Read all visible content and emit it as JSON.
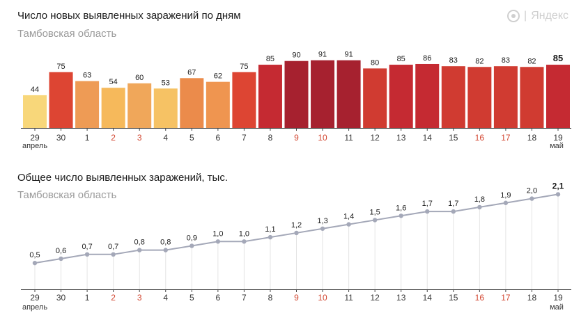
{
  "brand": {
    "logo_icon": "yandex-logo-icon",
    "separator": "|",
    "name": "Яндекс"
  },
  "chart_data": [
    {
      "type": "bar",
      "title": "Число новых выявленных заражений по дням",
      "subtitle": "Тамбовская область",
      "categories": [
        "29",
        "30",
        "1",
        "2",
        "3",
        "4",
        "5",
        "6",
        "7",
        "8",
        "9",
        "10",
        "11",
        "12",
        "13",
        "14",
        "15",
        "16",
        "17",
        "18",
        "19"
      ],
      "values": [
        44,
        75,
        63,
        54,
        60,
        53,
        67,
        62,
        75,
        85,
        90,
        91,
        91,
        80,
        85,
        86,
        83,
        82,
        83,
        82,
        85
      ],
      "month_labels": [
        {
          "index": 0,
          "label": "апрель"
        },
        {
          "index": 20,
          "label": "май"
        }
      ],
      "weekend_indices": [
        3,
        4,
        10,
        11,
        17,
        18
      ],
      "highlight_index": 20,
      "ylim": [
        0,
        100
      ],
      "bar_colors": [
        "#f8d77a",
        "#dd4533",
        "#ee9b55",
        "#f6b95b",
        "#f0a75a",
        "#f6c264",
        "#eb8b4b",
        "#ef9550",
        "#dd4533",
        "#c52a32",
        "#a6212f",
        "#a6212f",
        "#a6212f",
        "#d03b31",
        "#c52a32",
        "#c52a32",
        "#d03b31",
        "#d03b31",
        "#d03b31",
        "#d03b31",
        "#c52a32"
      ]
    },
    {
      "type": "line",
      "title": "Общее число выявленных заражений, тыс.",
      "subtitle": "Тамбовская область",
      "categories": [
        "29",
        "30",
        "1",
        "2",
        "3",
        "4",
        "5",
        "6",
        "7",
        "8",
        "9",
        "10",
        "11",
        "12",
        "13",
        "14",
        "15",
        "16",
        "17",
        "18",
        "19"
      ],
      "values": [
        0.5,
        0.6,
        0.7,
        0.7,
        0.8,
        0.8,
        0.9,
        1.0,
        1.0,
        1.1,
        1.2,
        1.3,
        1.4,
        1.5,
        1.6,
        1.7,
        1.7,
        1.8,
        1.9,
        2.0,
        2.1
      ],
      "value_labels": [
        "0,5",
        "0,6",
        "0,7",
        "0,7",
        "0,8",
        "0,8",
        "0,9",
        "1,0",
        "1,0",
        "1,1",
        "1,2",
        "1,3",
        "1,4",
        "1,5",
        "1,6",
        "1,7",
        "1,7",
        "1,8",
        "1,9",
        "2,0",
        "2,1"
      ],
      "month_labels": [
        {
          "index": 0,
          "label": "апрель"
        },
        {
          "index": 20,
          "label": "май"
        }
      ],
      "weekend_indices": [
        3,
        4,
        10,
        11,
        17,
        18
      ],
      "highlight_index": 20,
      "ylim": [
        0,
        2.8
      ]
    }
  ],
  "colors": {
    "weekend_text": "#d2452f",
    "axis_text": "#333333",
    "line": "#a4a8b8",
    "grid": "#e4e4e4",
    "axis": "#444444"
  }
}
